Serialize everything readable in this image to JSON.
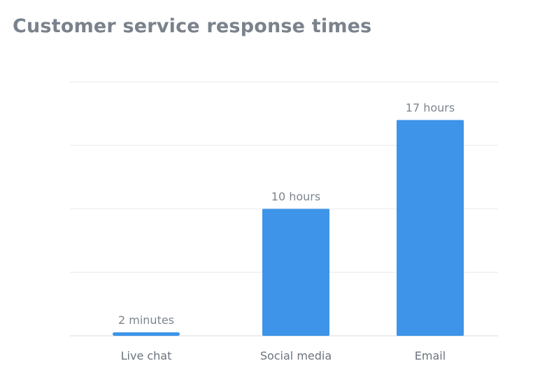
{
  "chart_data": {
    "type": "bar",
    "title": "Customer service response times",
    "xlabel": "",
    "ylabel": "",
    "unit": "hours",
    "categories": [
      "Live chat",
      "Social media",
      "Email"
    ],
    "values": [
      0.0333,
      10,
      17
    ],
    "data_labels": [
      "2 minutes",
      "10 hours",
      "17 hours"
    ],
    "ylim": [
      0,
      20
    ],
    "grid": true,
    "legend": "none",
    "bar_color": "#3d94e8"
  }
}
